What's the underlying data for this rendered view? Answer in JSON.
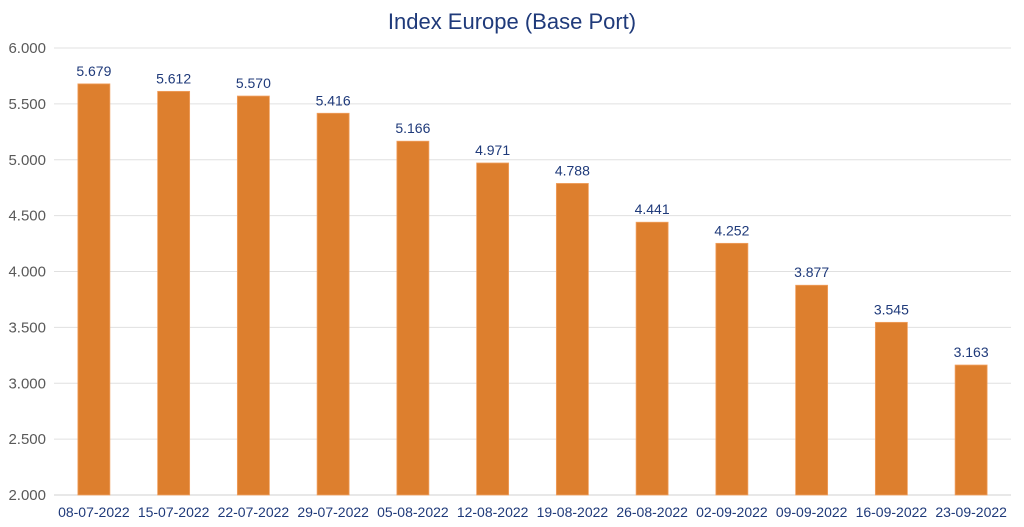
{
  "chart_data": {
    "type": "bar",
    "title": "Index Europe (Base Port)",
    "xlabel": "",
    "ylabel": "",
    "categories": [
      "08-07-2022",
      "15-07-2022",
      "22-07-2022",
      "29-07-2022",
      "05-08-2022",
      "12-08-2022",
      "19-08-2022",
      "26-08-2022",
      "02-09-2022",
      "09-09-2022",
      "16-09-2022",
      "23-09-2022"
    ],
    "values": [
      5679,
      5612,
      5570,
      5416,
      5166,
      4971,
      4788,
      4441,
      4252,
      3877,
      3545,
      3163
    ],
    "value_labels": [
      "5.679",
      "5.612",
      "5.570",
      "5.416",
      "5.166",
      "4.971",
      "4.788",
      "4.441",
      "4.252",
      "3.877",
      "3.545",
      "3.163"
    ],
    "ylim": [
      2000,
      6000
    ],
    "yticks": [
      2000,
      2500,
      3000,
      3500,
      4000,
      4500,
      5000,
      5500,
      6000
    ],
    "ytick_labels": [
      "2.000",
      "2.500",
      "3.000",
      "3.500",
      "4.000",
      "4.500",
      "5.000",
      "5.500",
      "6.000"
    ],
    "grid": true,
    "legend": "none",
    "colors": {
      "bar": "#dd7f2e",
      "title": "#1f3a7a",
      "grid": "#e0e0e0"
    }
  }
}
